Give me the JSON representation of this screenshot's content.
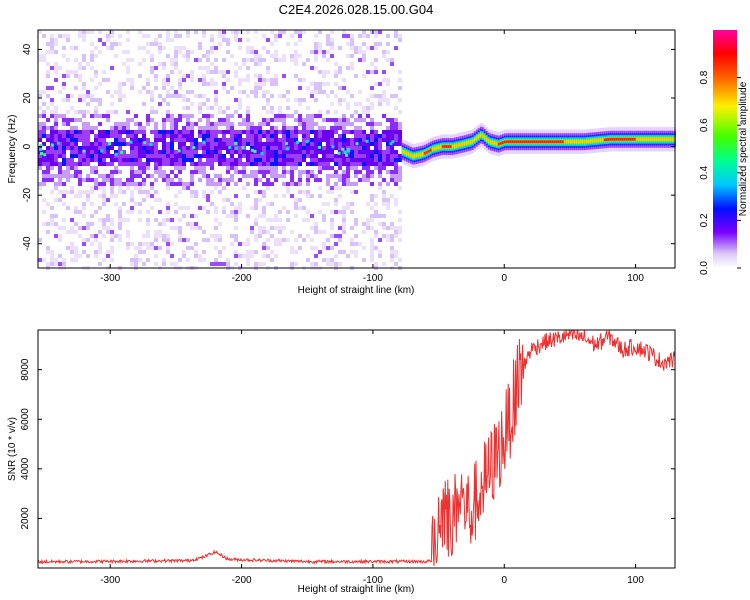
{
  "title": "C2E4.2026.028.15.00.G04",
  "colors": {
    "snr_line": "#ee3030",
    "axis": "#000000",
    "background": "#ffffff"
  },
  "chart_data": [
    {
      "type": "heatmap",
      "title": "C2E4.2026.028.15.00.G04",
      "xlabel": "Height of straight line (km)",
      "ylabel": "Frequency (Hz)",
      "xlim": [
        -355,
        130
      ],
      "ylim": [
        -50,
        48
      ],
      "xticks": [
        -300,
        -200,
        -100,
        0,
        100
      ],
      "yticks": [
        -40,
        -20,
        0,
        20,
        40
      ],
      "noise_region_end": -78,
      "ridge": {
        "x": [
          -78,
          -70,
          -62,
          -55,
          -48,
          -40,
          -32,
          -25,
          -18,
          -12,
          -5,
          0,
          20,
          40,
          60,
          80,
          100,
          115,
          130
        ],
        "y": [
          -2,
          -4,
          -3,
          -1,
          0,
          0,
          1,
          2,
          5,
          2,
          1,
          2,
          2,
          2,
          2,
          3,
          3,
          3,
          3
        ]
      },
      "colorbar": {
        "label": "Normalized spectral amplitude",
        "ticks": [
          "0.0",
          "0.2",
          "0.4",
          "0.6",
          "0.8"
        ],
        "range": [
          0,
          1
        ]
      }
    },
    {
      "type": "line",
      "xlabel": "Height of straight line (km)",
      "ylabel": "SNR (10 * v/v)",
      "xlim": [
        -355,
        130
      ],
      "ylim": [
        0,
        9600
      ],
      "xticks": [
        -300,
        -200,
        -100,
        0,
        100
      ],
      "yticks": [
        2000,
        4000,
        6000,
        8000
      ],
      "series": [
        {
          "name": "SNR",
          "x": [
            -355,
            -300,
            -240,
            -230,
            -220,
            -210,
            -150,
            -100,
            -60,
            -55,
            -50,
            -45,
            -40,
            -35,
            -30,
            -25,
            -20,
            -15,
            -10,
            -5,
            0,
            5,
            10,
            20,
            30,
            40,
            50,
            60,
            70,
            80,
            90,
            100,
            110,
            120,
            130
          ],
          "values": [
            250,
            270,
            300,
            420,
            650,
            350,
            260,
            260,
            260,
            300,
            2000,
            2600,
            1500,
            3000,
            2500,
            2200,
            3000,
            3500,
            4000,
            4600,
            5300,
            6200,
            7500,
            8800,
            9100,
            9250,
            9400,
            9300,
            9000,
            9350,
            8800,
            8950,
            8700,
            8300,
            8400
          ]
        }
      ]
    }
  ]
}
